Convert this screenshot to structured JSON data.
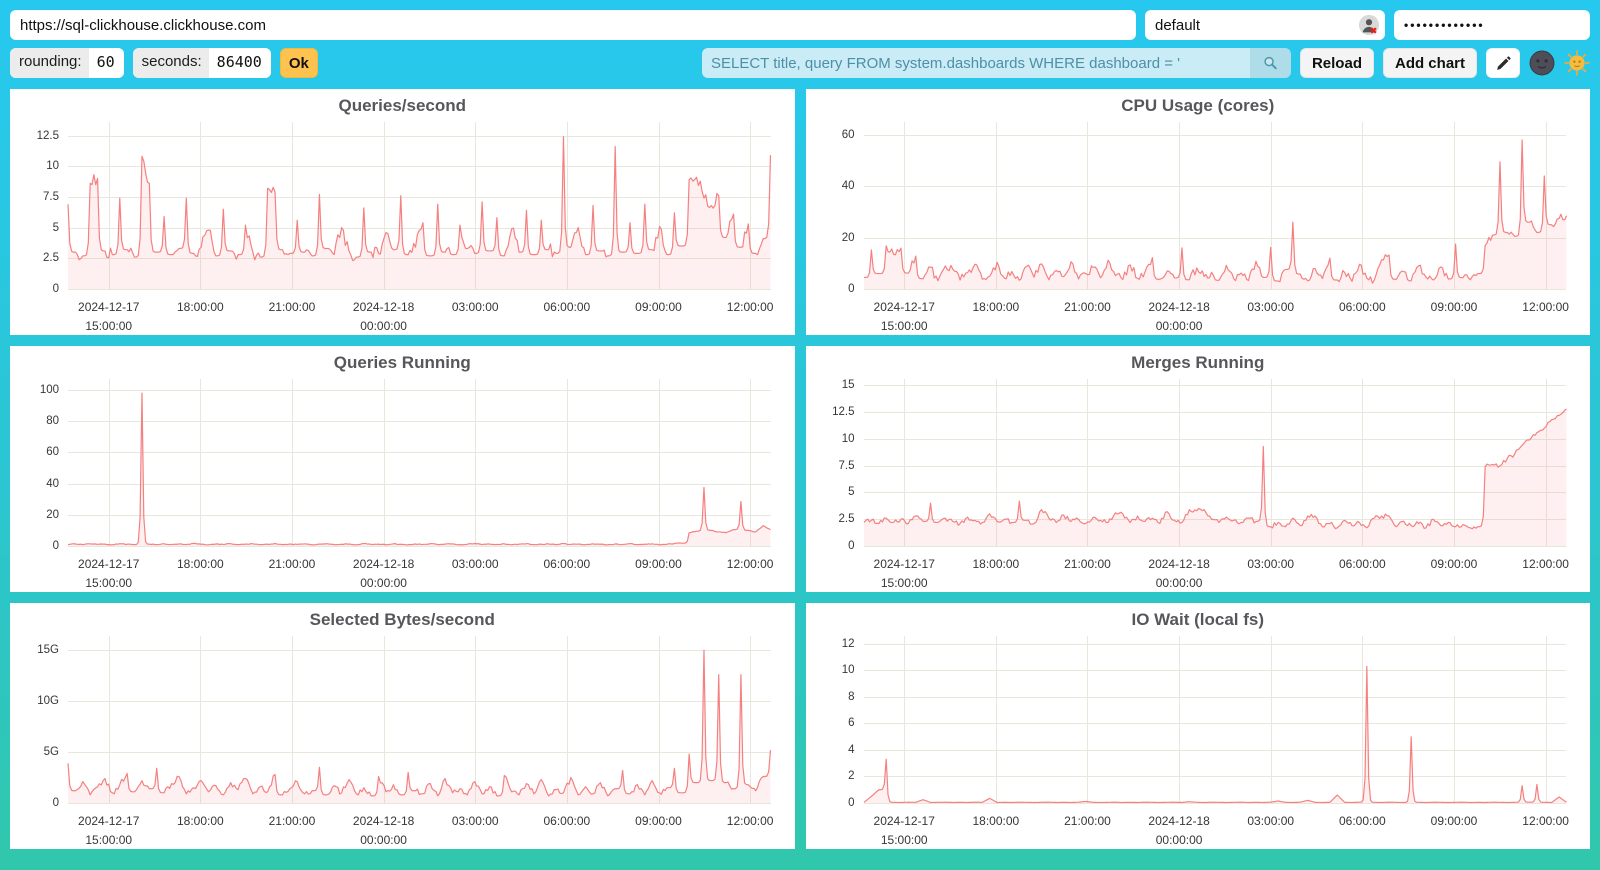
{
  "browser": {
    "url": "https://sql-clickhouse.clickhouse.com",
    "user": "default",
    "password": "•••••••••••••"
  },
  "toolbar": {
    "rounding_label": "rounding:",
    "rounding_value": "60",
    "seconds_label": "seconds:",
    "seconds_value": "86400",
    "ok_label": "Ok",
    "query_value": "SELECT title, query FROM system.dashboards WHERE dashboard = '",
    "reload_label": "Reload",
    "add_chart_label": "Add chart",
    "icons": {
      "search": "magnifier-icon",
      "edit": "pencil-icon",
      "dark_theme": "moon-face-icon",
      "light_theme": "sun-face-icon",
      "user_status": "user-with-red-cross-icon"
    }
  },
  "colors": {
    "background_top": "#27C8EF",
    "background_bottom": "#31C7AC",
    "line": "#F58080",
    "fill": "rgba(246,137,137,0.13)",
    "grid": "#E8E7DB",
    "ok_button": "#FEC34F",
    "query_bg": "#C9ECF6",
    "query_text": "#4E8FA5",
    "search_button_bg": "#AFDCE9"
  },
  "chart_data": {
    "type": "line",
    "x_start": "2024-12-17 13:40:00",
    "x_end": "2024-12-18 12:40:00",
    "legend": "none",
    "grid": "on",
    "x_ticks": [
      {
        "frac": 0.05797,
        "lines": [
          "2024-12-17",
          "15:00:00"
        ]
      },
      {
        "frac": 0.18841,
        "lines": [
          "18:00:00"
        ]
      },
      {
        "frac": 0.31884,
        "lines": [
          "21:00:00"
        ]
      },
      {
        "frac": 0.44928,
        "lines": [
          "2024-12-18",
          "00:00:00"
        ]
      },
      {
        "frac": 0.57971,
        "lines": [
          "03:00:00"
        ]
      },
      {
        "frac": 0.71014,
        "lines": [
          "06:00:00"
        ]
      },
      {
        "frac": 0.84058,
        "lines": [
          "09:00:00"
        ]
      },
      {
        "frac": 0.97101,
        "lines": [
          "12:00:00"
        ]
      }
    ],
    "charts": [
      {
        "title": "Queries/second",
        "ymax": 13.6,
        "noise": 0.55,
        "seed": 11,
        "yticks": [
          {
            "v": 0,
            "l": "0"
          },
          {
            "v": 2.5,
            "l": "2.5"
          },
          {
            "v": 5,
            "l": "5"
          },
          {
            "v": 7.5,
            "l": "7.5"
          },
          {
            "v": 10,
            "l": "10"
          },
          {
            "v": 12.5,
            "l": "12.5"
          }
        ],
        "values": [
          6.9,
          3.0,
          2.7,
          8.6,
          9.0,
          3.1,
          2.8,
          7.4,
          3.2,
          2.6,
          10.8,
          8.6,
          3.0,
          5.9,
          2.8,
          3.3,
          7.4,
          2.9,
          3.4,
          4.8,
          2.7,
          6.5,
          3.1,
          2.8,
          5.2,
          3.0,
          2.6,
          8.2,
          7.9,
          3.2,
          2.9,
          5.6,
          3.0,
          2.7,
          7.7,
          3.3,
          2.8,
          5.0,
          3.1,
          2.6,
          6.6,
          3.0,
          2.9,
          4.6,
          3.2,
          7.6,
          2.8,
          3.4,
          5.4,
          2.7,
          6.9,
          3.0,
          2.8,
          5.2,
          3.3,
          2.9,
          7.1,
          3.1,
          5.8,
          2.7,
          4.9,
          3.0,
          6.4,
          2.8,
          5.6,
          3.2,
          2.9,
          12.4,
          3.4,
          5.0,
          2.8,
          6.8,
          3.1,
          2.7,
          11.6,
          3.0,
          5.4,
          2.9,
          6.9,
          3.2,
          5.1,
          2.8,
          6.2,
          3.5,
          8.9,
          9.1,
          7.4,
          6.8,
          7.6,
          4.2,
          6.1,
          3.4,
          5.3,
          2.9,
          4.1,
          10.9
        ]
      },
      {
        "title": "CPU Usage (cores)",
        "ymax": 65,
        "noise": 1.6,
        "seed": 22,
        "yticks": [
          {
            "v": 0,
            "l": "0"
          },
          {
            "v": 20,
            "l": "20"
          },
          {
            "v": 40,
            "l": "40"
          },
          {
            "v": 60,
            "l": "60"
          }
        ],
        "values": [
          4.5,
          15.2,
          6.0,
          16.8,
          13.5,
          15.9,
          6.2,
          12.8,
          4.0,
          8.5,
          3.2,
          9.0,
          7.8,
          3.5,
          6.4,
          9.6,
          3.8,
          5.0,
          10.4,
          4.2,
          6.8,
          3.4,
          8.8,
          4.6,
          9.8,
          3.6,
          7.2,
          4.8,
          10.6,
          3.9,
          6.0,
          8.4,
          4.4,
          11.2,
          5.2,
          3.7,
          9.4,
          4.1,
          6.6,
          12.2,
          3.8,
          7.0,
          4.3,
          16.0,
          3.6,
          8.2,
          4.9,
          6.5,
          3.4,
          9.2,
          4.0,
          6.2,
          3.3,
          10.8,
          4.5,
          16.2,
          3.1,
          7.6,
          26.0,
          5.8,
          3.2,
          8.0,
          4.1,
          12.0,
          3.5,
          6.4,
          3.0,
          9.6,
          4.2,
          3.4,
          11.4,
          13.2,
          3.8,
          6.8,
          3.2,
          9.0,
          4.6,
          3.5,
          8.6,
          3.9,
          17.5,
          4.4,
          3.6,
          6.0,
          17.0,
          21.0,
          49.5,
          22.0,
          20.5,
          58.0,
          26.0,
          22.0,
          44.0,
          25.0,
          27.5,
          28.5
        ]
      },
      {
        "title": "Queries Running",
        "ymax": 107,
        "noise": 0.25,
        "seed": 33,
        "yticks": [
          {
            "v": 0,
            "l": "0"
          },
          {
            "v": 20,
            "l": "20"
          },
          {
            "v": 40,
            "l": "40"
          },
          {
            "v": 60,
            "l": "60"
          },
          {
            "v": 80,
            "l": "80"
          },
          {
            "v": 100,
            "l": "100"
          }
        ],
        "values": [
          1.0,
          1.3,
          0.9,
          1.4,
          1.0,
          1.2,
          0.8,
          1.5,
          1.1,
          0.9,
          98.0,
          1.2,
          0.8,
          1.4,
          1.0,
          1.3,
          0.9,
          1.6,
          1.1,
          0.8,
          1.3,
          1.0,
          1.5,
          0.9,
          1.2,
          1.4,
          0.8,
          1.1,
          1.6,
          0.9,
          1.3,
          1.0,
          1.4,
          0.8,
          1.2,
          1.5,
          0.9,
          1.1,
          1.3,
          0.8,
          1.6,
          1.0,
          1.2,
          0.9,
          1.4,
          1.1,
          0.8,
          1.3,
          1.0,
          1.5,
          0.9,
          1.2,
          1.4,
          0.8,
          1.1,
          1.6,
          0.9,
          1.3,
          1.0,
          1.4,
          0.8,
          1.2,
          1.5,
          0.9,
          1.1,
          1.3,
          0.8,
          1.6,
          1.0,
          1.2,
          0.9,
          1.4,
          1.1,
          0.8,
          1.3,
          1.0,
          1.5,
          0.9,
          1.2,
          1.4,
          0.8,
          1.1,
          1.6,
          1.8,
          8.5,
          9.5,
          37.5,
          10.0,
          9.0,
          8.5,
          10.5,
          28.5,
          10.0,
          9.0,
          13.0,
          10.5
        ]
      },
      {
        "title": "Merges Running",
        "ymax": 15.6,
        "noise": 0.22,
        "seed": 44,
        "yticks": [
          {
            "v": 0,
            "l": "0"
          },
          {
            "v": 2.5,
            "l": "2.5"
          },
          {
            "v": 5,
            "l": "5"
          },
          {
            "v": 7.5,
            "l": "7.5"
          },
          {
            "v": 10,
            "l": "10"
          },
          {
            "v": 12.5,
            "l": "12.5"
          },
          {
            "v": 15,
            "l": "15"
          }
        ],
        "values": [
          2.2,
          2.4,
          2.1,
          2.6,
          2.2,
          2.5,
          2.1,
          2.8,
          2.3,
          4.0,
          2.2,
          2.6,
          2.3,
          2.1,
          2.7,
          2.4,
          2.2,
          3.0,
          2.3,
          2.5,
          2.2,
          4.2,
          2.4,
          2.1,
          3.4,
          2.6,
          2.2,
          2.9,
          2.3,
          2.5,
          2.1,
          2.7,
          2.4,
          2.2,
          3.1,
          3.0,
          2.2,
          2.8,
          2.3,
          2.6,
          2.1,
          3.2,
          2.4,
          2.2,
          3.4,
          3.3,
          3.4,
          2.5,
          2.2,
          2.7,
          2.4,
          2.2,
          2.6,
          2.3,
          9.3,
          1.8,
          2.2,
          1.8,
          2.6,
          1.9,
          2.8,
          2.8,
          1.8,
          2.1,
          1.7,
          2.4,
          1.9,
          2.2,
          1.7,
          2.6,
          2.8,
          2.8,
          1.8,
          2.3,
          1.9,
          2.1,
          1.7,
          2.5,
          1.9,
          2.2,
          1.8,
          2.0,
          1.7,
          1.8,
          7.4,
          7.6,
          7.5,
          8.2,
          8.6,
          9.4,
          9.9,
          10.6,
          11.0,
          11.8,
          12.2,
          12.8
        ]
      },
      {
        "title": "Selected Bytes/second",
        "ymax": 16.4,
        "noise": 0.3,
        "seed": 55,
        "yticks": [
          {
            "v": 0,
            "l": "0"
          },
          {
            "v": 5,
            "l": "5G"
          },
          {
            "v": 10,
            "l": "10G"
          },
          {
            "v": 15,
            "l": "15G"
          }
        ],
        "values": [
          3.9,
          1.2,
          2.1,
          0.8,
          1.6,
          2.4,
          1.0,
          1.8,
          2.9,
          1.1,
          2.2,
          1.4,
          3.4,
          1.0,
          1.9,
          2.6,
          0.9,
          1.5,
          2.2,
          1.1,
          1.7,
          0.8,
          2.0,
          1.3,
          2.4,
          0.9,
          1.6,
          1.1,
          2.8,
          0.8,
          1.4,
          2.1,
          0.9,
          1.2,
          3.5,
          0.8,
          1.7,
          1.0,
          2.3,
          0.9,
          1.5,
          0.7,
          2.6,
          1.1,
          1.8,
          0.8,
          3.0,
          1.2,
          0.9,
          1.9,
          0.7,
          2.4,
          1.0,
          1.4,
          0.8,
          2.1,
          0.9,
          1.6,
          0.7,
          2.7,
          1.1,
          0.8,
          1.9,
          0.9,
          2.3,
          0.7,
          1.3,
          1.0,
          2.5,
          0.8,
          1.6,
          0.9,
          2.0,
          0.7,
          1.4,
          3.2,
          0.9,
          1.8,
          0.8,
          2.2,
          1.0,
          1.5,
          3.4,
          1.0,
          4.8,
          2.0,
          15.0,
          2.2,
          12.6,
          2.0,
          1.4,
          12.6,
          1.8,
          1.2,
          2.6,
          5.2
        ]
      },
      {
        "title": "IO Wait (local fs)",
        "ymax": 12.6,
        "noise": 0.015,
        "seed": 66,
        "yticks": [
          {
            "v": 0,
            "l": "0"
          },
          {
            "v": 2,
            "l": "2"
          },
          {
            "v": 4,
            "l": "4"
          },
          {
            "v": 6,
            "l": "6"
          },
          {
            "v": 8,
            "l": "8"
          },
          {
            "v": 10,
            "l": "10"
          },
          {
            "v": 12,
            "l": "12"
          }
        ],
        "values": [
          0.05,
          0.5,
          1.0,
          3.3,
          0.05,
          0.04,
          0.06,
          0.05,
          0.25,
          0.04,
          0.05,
          0.06,
          0.04,
          0.05,
          0.04,
          0.06,
          0.05,
          0.35,
          0.04,
          0.05,
          0.04,
          0.06,
          0.05,
          0.04,
          0.05,
          0.06,
          0.04,
          0.05,
          0.04,
          0.06,
          0.12,
          0.05,
          0.04,
          0.05,
          0.06,
          0.04,
          0.05,
          0.04,
          0.06,
          0.05,
          0.04,
          0.05,
          0.06,
          0.04,
          0.1,
          0.05,
          0.04,
          0.06,
          0.05,
          0.04,
          0.05,
          0.06,
          0.04,
          0.05,
          0.04,
          0.06,
          0.15,
          0.05,
          0.04,
          0.06,
          0.2,
          0.05,
          0.04,
          0.05,
          0.6,
          0.05,
          0.04,
          0.06,
          10.3,
          0.05,
          0.04,
          0.06,
          0.05,
          0.04,
          5.0,
          0.05,
          0.04,
          0.06,
          0.05,
          0.04,
          0.05,
          0.06,
          0.04,
          0.05,
          0.04,
          0.06,
          0.05,
          0.04,
          0.05,
          1.3,
          0.06,
          1.4,
          0.05,
          0.04,
          0.45,
          0.06
        ]
      }
    ]
  }
}
